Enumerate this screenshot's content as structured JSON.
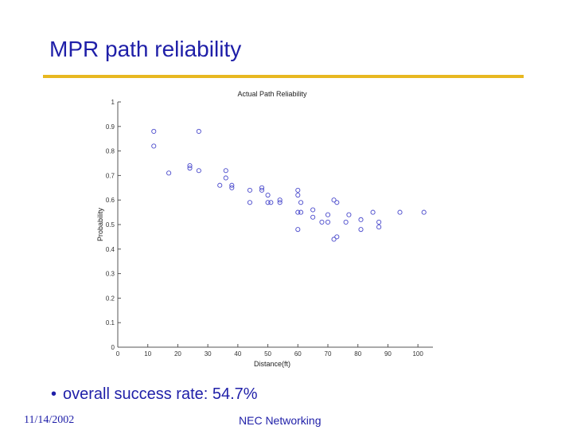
{
  "slide": {
    "title": "MPR path reliability",
    "bullet_marker": "•",
    "bullet": "overall success rate: 54.7%",
    "footer_date": "11/14/2002",
    "footer_org": "NEC Networking"
  },
  "colors": {
    "title": "#1f1fa8",
    "rule": "#e8b820",
    "marker": "#4a4acc",
    "axis": "#555555"
  },
  "chart_data": {
    "type": "scatter",
    "title": "Actual Path Reliability",
    "xlabel": "Distance(ft)",
    "ylabel": "Probability",
    "xlim": [
      0,
      105
    ],
    "ylim": [
      0,
      1
    ],
    "grid": false,
    "x_ticks": [
      0,
      10,
      20,
      30,
      40,
      50,
      60,
      70,
      80,
      90,
      100
    ],
    "y_ticks": [
      0,
      0.1,
      0.2,
      0.3,
      0.4,
      0.5,
      0.6,
      0.7,
      0.8,
      0.9,
      1
    ],
    "series": [
      {
        "name": "paths",
        "points": [
          [
            12,
            0.88
          ],
          [
            12,
            0.82
          ],
          [
            27,
            0.88
          ],
          [
            17,
            0.71
          ],
          [
            24,
            0.73
          ],
          [
            24,
            0.74
          ],
          [
            27,
            0.72
          ],
          [
            34,
            0.66
          ],
          [
            36,
            0.72
          ],
          [
            36,
            0.69
          ],
          [
            38,
            0.66
          ],
          [
            38,
            0.65
          ],
          [
            44,
            0.64
          ],
          [
            44,
            0.59
          ],
          [
            48,
            0.64
          ],
          [
            48,
            0.65
          ],
          [
            50,
            0.62
          ],
          [
            50,
            0.59
          ],
          [
            51,
            0.59
          ],
          [
            54,
            0.59
          ],
          [
            54,
            0.6
          ],
          [
            60,
            0.64
          ],
          [
            60,
            0.62
          ],
          [
            61,
            0.59
          ],
          [
            60,
            0.55
          ],
          [
            61,
            0.55
          ],
          [
            60,
            0.48
          ],
          [
            65,
            0.56
          ],
          [
            65,
            0.53
          ],
          [
            68,
            0.51
          ],
          [
            70,
            0.51
          ],
          [
            70,
            0.54
          ],
          [
            72,
            0.6
          ],
          [
            73,
            0.59
          ],
          [
            72,
            0.44
          ],
          [
            73,
            0.45
          ],
          [
            76,
            0.51
          ],
          [
            77,
            0.54
          ],
          [
            81,
            0.52
          ],
          [
            81,
            0.48
          ],
          [
            85,
            0.55
          ],
          [
            87,
            0.51
          ],
          [
            87,
            0.49
          ],
          [
            94,
            0.55
          ],
          [
            102,
            0.55
          ]
        ]
      }
    ]
  }
}
